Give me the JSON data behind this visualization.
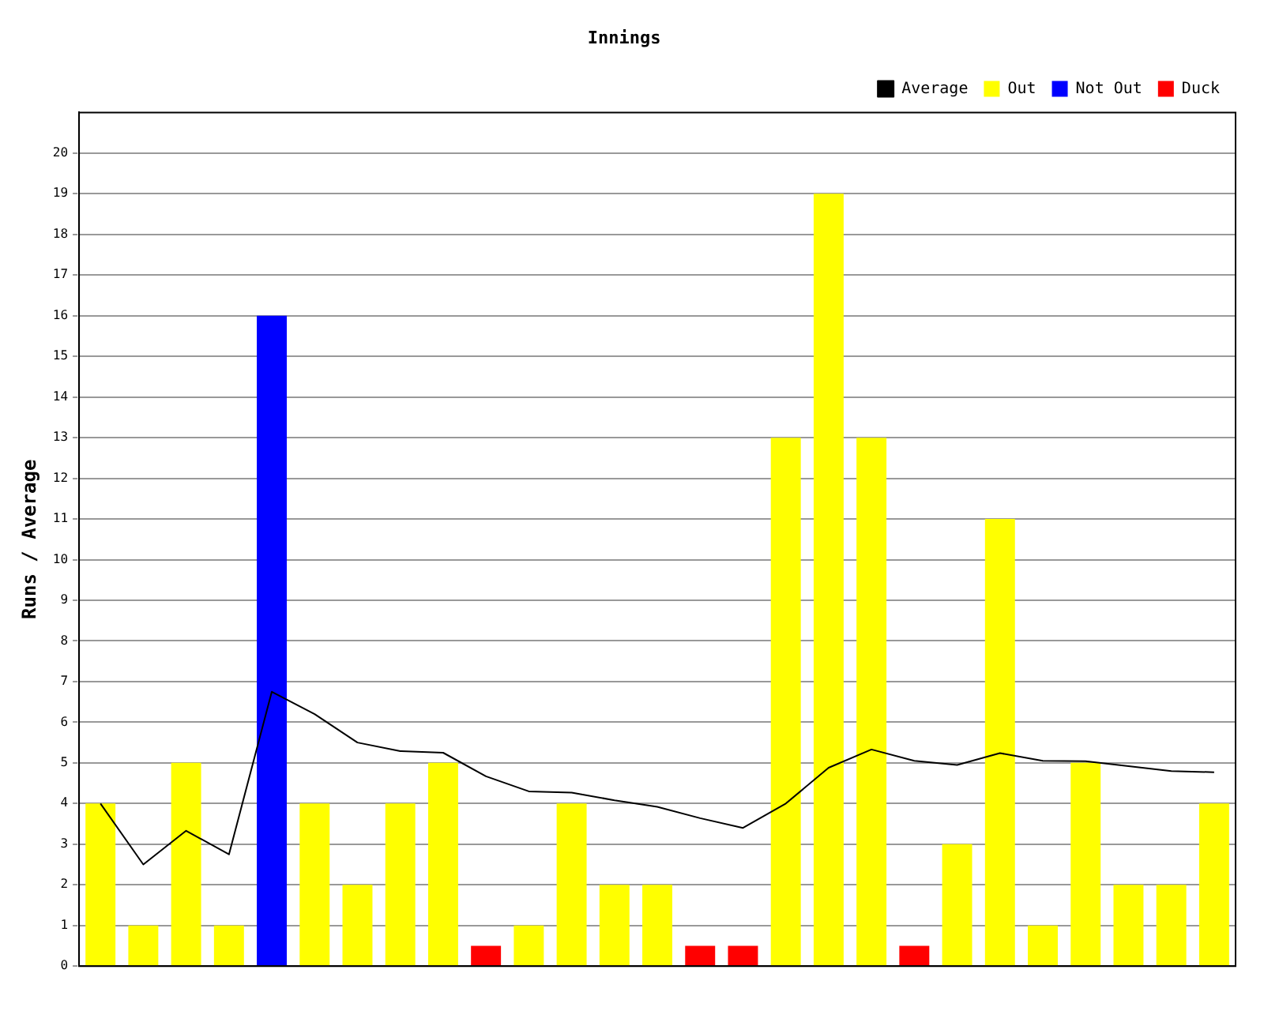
{
  "chart_data": {
    "type": "bar",
    "title": "Innings",
    "ylabel": "Runs / Average",
    "stacked": true,
    "categories": [
      null,
      null,
      null,
      null,
      null,
      null,
      null,
      null,
      null,
      null,
      null,
      null,
      null,
      null,
      null,
      null,
      null,
      null,
      null,
      null,
      null,
      null,
      null,
      null,
      null,
      null,
      null
    ],
    "series": [
      {
        "name": "Average",
        "type": "line",
        "color": "#000000",
        "values": [
          4,
          2.5,
          3.33,
          2.75,
          6.75,
          6.2,
          5.5,
          5.29,
          5.25,
          4.67,
          4.3,
          4.27,
          4.08,
          3.92,
          3.64,
          3.4,
          4,
          4.88,
          5.33,
          5.05,
          4.95,
          5.24,
          5.05,
          5.04,
          4.92,
          4.8,
          4.77
        ]
      },
      {
        "name": "Out",
        "color": "#ffff00",
        "values": [
          4,
          1,
          5,
          1,
          null,
          4,
          2,
          4,
          5,
          null,
          1,
          4,
          2,
          2,
          null,
          null,
          13,
          19,
          13,
          null,
          3,
          11,
          1,
          5,
          2,
          2,
          4
        ]
      },
      {
        "name": "Not Out",
        "color": "#0000ff",
        "values": [
          null,
          null,
          null,
          null,
          16,
          null,
          null,
          null,
          null,
          null,
          null,
          null,
          null,
          null,
          null,
          null,
          null,
          null,
          null,
          null,
          null,
          null,
          null,
          null,
          null,
          null,
          null
        ]
      },
      {
        "name": "Duck",
        "color": "#ff0000",
        "values": [
          null,
          null,
          null,
          null,
          null,
          null,
          null,
          null,
          null,
          0.5,
          null,
          null,
          null,
          null,
          0.5,
          0.5,
          null,
          null,
          null,
          0.5,
          null,
          null,
          null,
          null,
          null,
          null,
          null
        ]
      }
    ],
    "ylim": [
      0,
      21
    ],
    "yticks": [
      0,
      1,
      2,
      3,
      4,
      5,
      6,
      7,
      8,
      9,
      10,
      11,
      12,
      13,
      14,
      15,
      16,
      17,
      18,
      19,
      20
    ],
    "grid": "y",
    "legend": "top right",
    "marker": "none",
    "line_style": "solid"
  }
}
